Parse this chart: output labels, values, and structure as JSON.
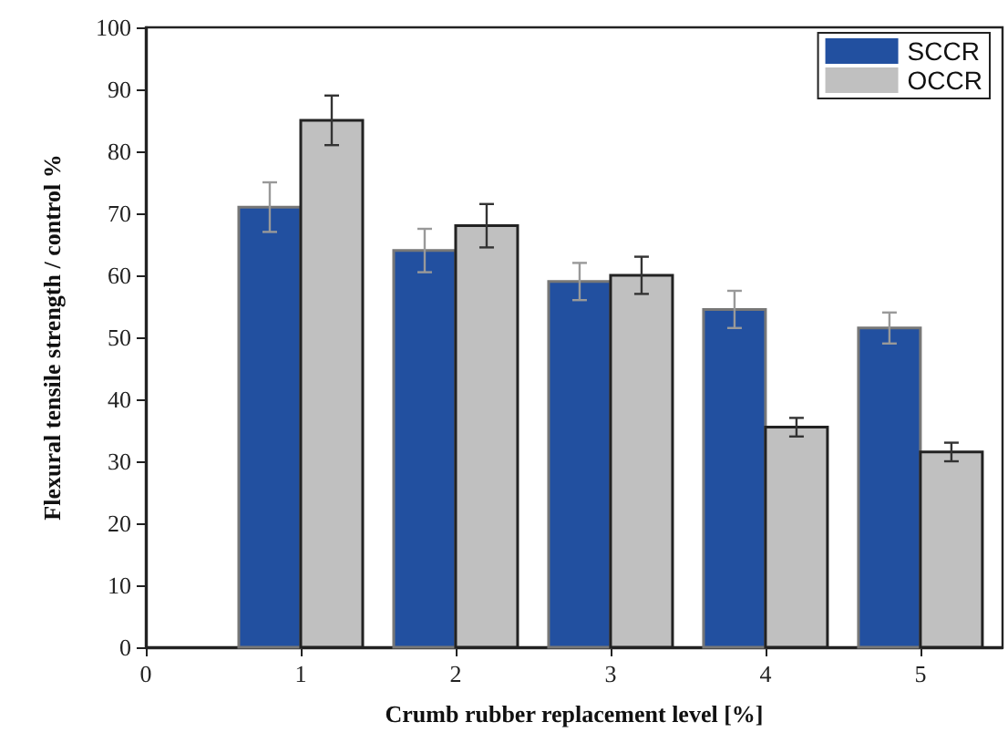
{
  "chart_data": {
    "type": "bar",
    "xlabel": "Crumb rubber replacement level [%]",
    "ylabel": "Flexural tensile strength / control %",
    "xlim": [
      0,
      5.53
    ],
    "xticks": [
      0,
      1,
      2,
      3,
      4,
      5
    ],
    "ylim": [
      0,
      100
    ],
    "yticks": [
      0,
      10,
      20,
      30,
      40,
      50,
      60,
      70,
      80,
      90,
      100
    ],
    "legend": "top right",
    "series": [
      {
        "name": "SCCR",
        "color": "#2250a0",
        "x": [
          1,
          2,
          3,
          4,
          5
        ],
        "values": [
          71,
          64,
          59,
          54.5,
          51.5
        ],
        "errors": [
          4,
          3.5,
          3,
          3,
          2.5
        ]
      },
      {
        "name": "OCCR",
        "color": "#c0c0c0",
        "x": [
          1,
          2,
          3,
          4,
          5
        ],
        "values": [
          85,
          68,
          60,
          35.5,
          31.5
        ],
        "errors": [
          4,
          3.5,
          3,
          1.5,
          1.5
        ]
      }
    ]
  }
}
